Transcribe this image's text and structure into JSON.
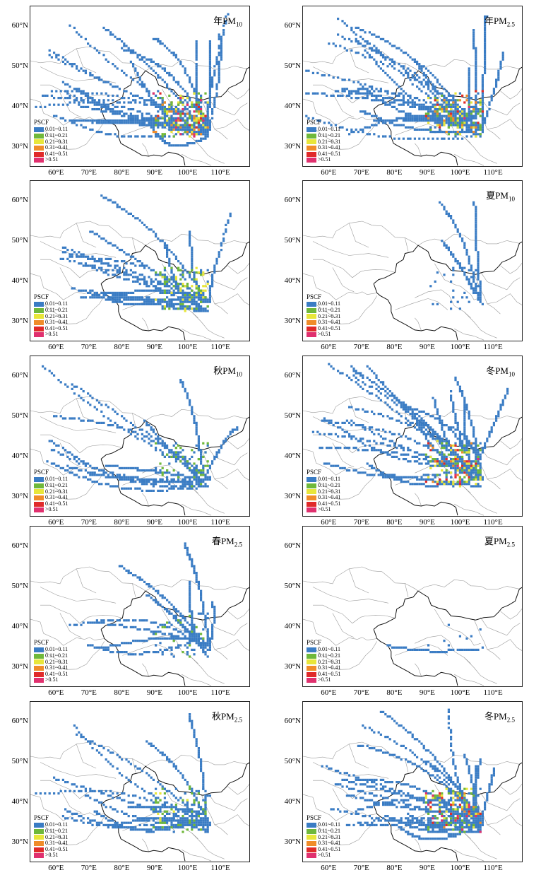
{
  "legend": {
    "title": "PSCF",
    "classes": [
      {
        "label": "0.01~0.11",
        "color": "#3a7cc4"
      },
      {
        "label": "0.11~0.21",
        "color": "#6fb83a"
      },
      {
        "label": "0.21~0.31",
        "color": "#e8e63a"
      },
      {
        "label": "0.31~0.41",
        "color": "#f08c2a"
      },
      {
        "label": "0.41~0.51",
        "color": "#e02a2a"
      },
      {
        "label": ">0.51",
        "color": "#e0306e"
      }
    ]
  },
  "axes": {
    "x_ticks": [
      "60°E",
      "70°E",
      "80°E",
      "90°E",
      "100°E",
      "110°E"
    ],
    "y_ticks": [
      "60°N",
      "50°N",
      "40°N",
      "30°N"
    ]
  },
  "colors": {
    "border": "#222222",
    "province_line": "#9a9a9a",
    "country_line": "#111111"
  },
  "panels": [
    {
      "id": "annual-pm10",
      "season": "年",
      "pollutant": "PM",
      "sub": "10",
      "intensity": 0.9
    },
    {
      "id": "annual-pm25",
      "season": "年",
      "pollutant": "PM",
      "sub": "2.5",
      "intensity": 0.85
    },
    {
      "id": "spring-pm10",
      "season": "",
      "pollutant": "",
      "sub": "",
      "intensity": 0.6
    },
    {
      "id": "summer-pm10",
      "season": "夏",
      "pollutant": "PM",
      "sub": "10",
      "intensity": 0.12
    },
    {
      "id": "autumn-pm10",
      "season": "秋",
      "pollutant": "PM",
      "sub": "10",
      "intensity": 0.45
    },
    {
      "id": "winter-pm10",
      "season": "冬",
      "pollutant": "PM",
      "sub": "10",
      "intensity": 0.85
    },
    {
      "id": "spring-pm25",
      "season": "春",
      "pollutant": "PM",
      "sub": "2.5",
      "intensity": 0.35
    },
    {
      "id": "summer-pm25",
      "season": "夏",
      "pollutant": "PM",
      "sub": "2.5",
      "intensity": 0.05
    },
    {
      "id": "autumn-pm25",
      "season": "秋",
      "pollutant": "PM",
      "sub": "2.5",
      "intensity": 0.5
    },
    {
      "id": "winter-pm25",
      "season": "冬",
      "pollutant": "PM",
      "sub": "2.5",
      "intensity": 0.9
    }
  ]
}
